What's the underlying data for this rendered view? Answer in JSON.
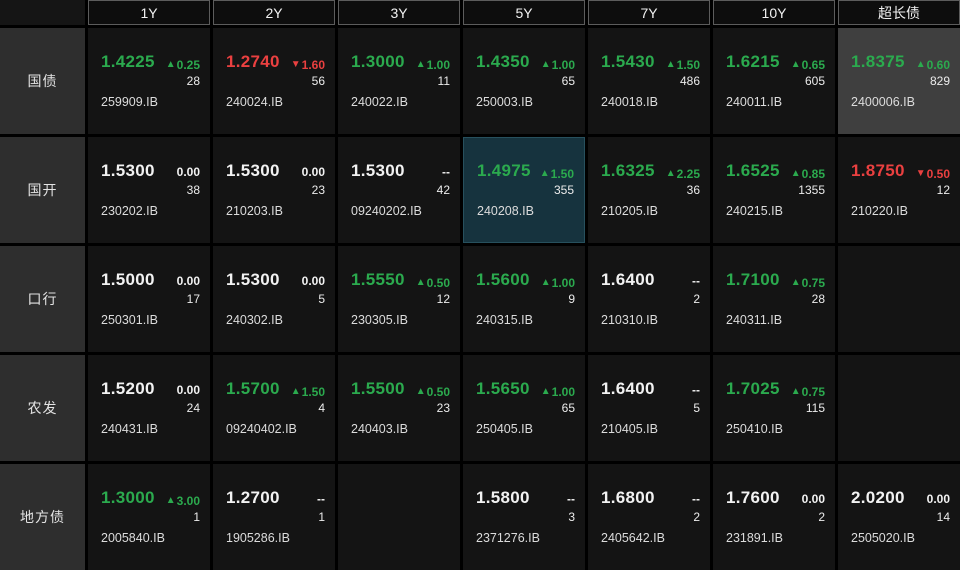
{
  "header": {
    "columns": [
      "1Y",
      "2Y",
      "3Y",
      "5Y",
      "7Y",
      "10Y",
      "超长债"
    ]
  },
  "icons": {
    "up_arrow": "▲",
    "down_arrow": "▼"
  },
  "colors": {
    "up": "#2baa4e",
    "down": "#ea4040",
    "neutral": "#f2f2f2",
    "highlight_gray": "#3f3f3f",
    "highlight_blue": "#16333e"
  },
  "rows": [
    {
      "label": "国债",
      "cells": [
        {
          "price": "1.4225",
          "dir": "up",
          "change": "0.25",
          "volume": "28",
          "code": "259909.IB"
        },
        {
          "price": "1.2740",
          "dir": "down",
          "change": "1.60",
          "volume": "56",
          "code": "240024.IB"
        },
        {
          "price": "1.3000",
          "dir": "up",
          "change": "1.00",
          "volume": "11",
          "code": "240022.IB"
        },
        {
          "price": "1.4350",
          "dir": "up",
          "change": "1.00",
          "volume": "65",
          "code": "250003.IB"
        },
        {
          "price": "1.5430",
          "dir": "up",
          "change": "1.50",
          "volume": "486",
          "code": "240018.IB"
        },
        {
          "price": "1.6215",
          "dir": "up",
          "change": "0.65",
          "volume": "605",
          "code": "240011.IB"
        },
        {
          "price": "1.8375",
          "dir": "up",
          "change": "0.60",
          "volume": "829",
          "code": "2400006.IB",
          "hl": "gray"
        }
      ]
    },
    {
      "label": "国开",
      "cells": [
        {
          "price": "1.5300",
          "dir": "flat",
          "change": "0.00",
          "volume": "38",
          "code": "230202.IB"
        },
        {
          "price": "1.5300",
          "dir": "flat",
          "change": "0.00",
          "volume": "23",
          "code": "210203.IB"
        },
        {
          "price": "1.5300",
          "dir": "na",
          "change": "--",
          "volume": "42",
          "code": "09240202.IB"
        },
        {
          "price": "1.4975",
          "dir": "up",
          "change": "1.50",
          "volume": "355",
          "code": "240208.IB",
          "hl": "blue"
        },
        {
          "price": "1.6325",
          "dir": "up",
          "change": "2.25",
          "volume": "36",
          "code": "210205.IB"
        },
        {
          "price": "1.6525",
          "dir": "up",
          "change": "0.85",
          "volume": "1355",
          "code": "240215.IB"
        },
        {
          "price": "1.8750",
          "dir": "down",
          "change": "0.50",
          "volume": "12",
          "code": "210220.IB"
        }
      ]
    },
    {
      "label": "口行",
      "cells": [
        {
          "price": "1.5000",
          "dir": "flat",
          "change": "0.00",
          "volume": "17",
          "code": "250301.IB"
        },
        {
          "price": "1.5300",
          "dir": "flat",
          "change": "0.00",
          "volume": "5",
          "code": "240302.IB"
        },
        {
          "price": "1.5550",
          "dir": "up",
          "change": "0.50",
          "volume": "12",
          "code": "230305.IB"
        },
        {
          "price": "1.5600",
          "dir": "up",
          "change": "1.00",
          "volume": "9",
          "code": "240315.IB"
        },
        {
          "price": "1.6400",
          "dir": "na",
          "change": "--",
          "volume": "2",
          "code": "210310.IB"
        },
        {
          "price": "1.7100",
          "dir": "up",
          "change": "0.75",
          "volume": "28",
          "code": "240311.IB"
        },
        null
      ]
    },
    {
      "label": "农发",
      "cells": [
        {
          "price": "1.5200",
          "dir": "flat",
          "change": "0.00",
          "volume": "24",
          "code": "240431.IB"
        },
        {
          "price": "1.5700",
          "dir": "up",
          "change": "1.50",
          "volume": "4",
          "code": "09240402.IB"
        },
        {
          "price": "1.5500",
          "dir": "up",
          "change": "0.50",
          "volume": "23",
          "code": "240403.IB"
        },
        {
          "price": "1.5650",
          "dir": "up",
          "change": "1.00",
          "volume": "65",
          "code": "250405.IB"
        },
        {
          "price": "1.6400",
          "dir": "na",
          "change": "--",
          "volume": "5",
          "code": "210405.IB"
        },
        {
          "price": "1.7025",
          "dir": "up",
          "change": "0.75",
          "volume": "115",
          "code": "250410.IB"
        },
        null
      ]
    },
    {
      "label": "地方债",
      "cells": [
        {
          "price": "1.3000",
          "dir": "up",
          "change": "3.00",
          "volume": "1",
          "code": "2005840.IB"
        },
        {
          "price": "1.2700",
          "dir": "na",
          "change": "--",
          "volume": "1",
          "code": "1905286.IB"
        },
        null,
        {
          "price": "1.5800",
          "dir": "na",
          "change": "--",
          "volume": "3",
          "code": "2371276.IB"
        },
        {
          "price": "1.6800",
          "dir": "na",
          "change": "--",
          "volume": "2",
          "code": "2405642.IB"
        },
        {
          "price": "1.7600",
          "dir": "flat",
          "change": "0.00",
          "volume": "2",
          "code": "231891.IB"
        },
        {
          "price": "2.0200",
          "dir": "flat",
          "change": "0.00",
          "volume": "14",
          "code": "2505020.IB"
        }
      ]
    }
  ]
}
